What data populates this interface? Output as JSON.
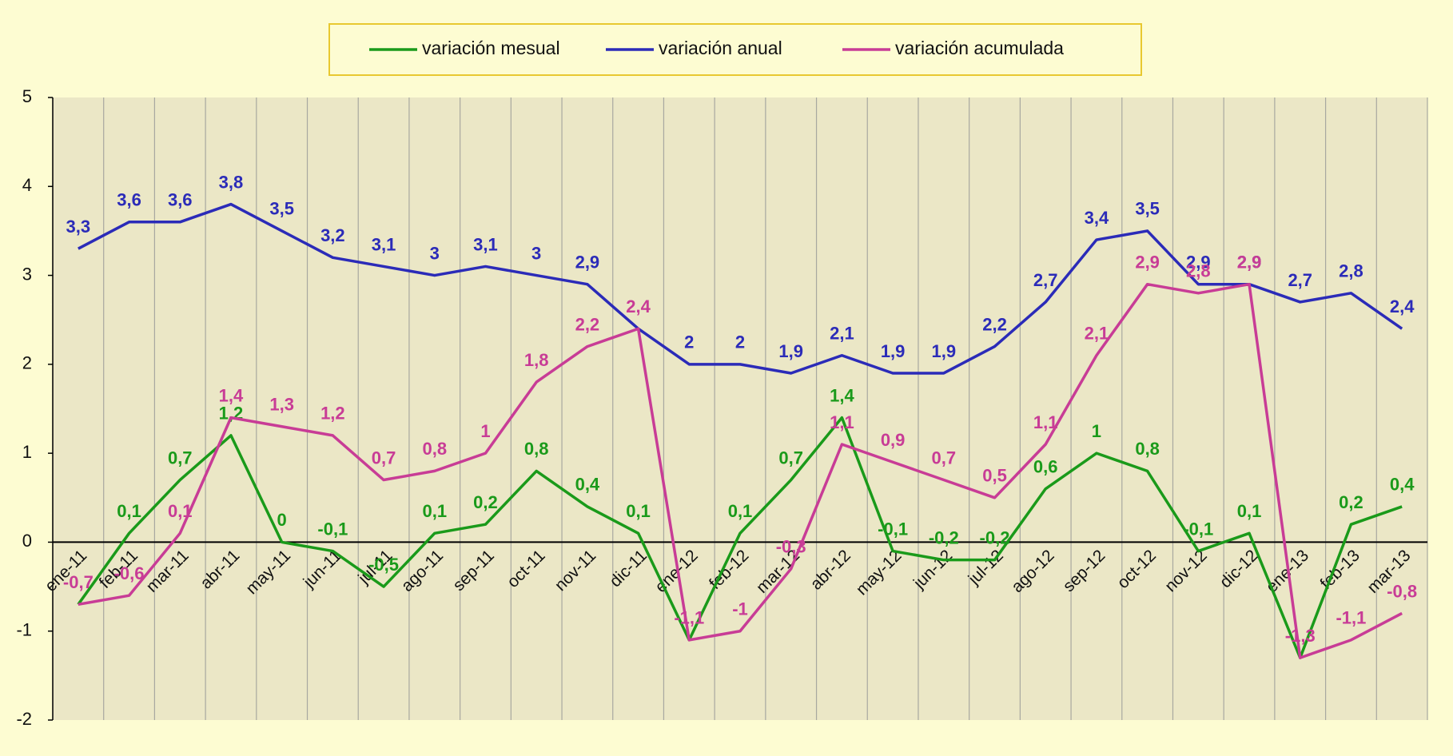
{
  "chart_data": {
    "type": "line",
    "categories": [
      "ene-11",
      "feb-11",
      "mar-11",
      "abr-11",
      "may-11",
      "jun-11",
      "jul-11",
      "ago-11",
      "sep-11",
      "oct-11",
      "nov-11",
      "dic-11",
      "ene-12",
      "feb-12",
      "mar-12",
      "abr-12",
      "may-12",
      "jun-12",
      "jul-12",
      "ago-12",
      "sep-12",
      "oct-12",
      "nov-12",
      "dic-12",
      "ene-13",
      "feb-13",
      "mar-13"
    ],
    "series": [
      {
        "name": "variación mesual",
        "color": "#1a9a1a",
        "values": [
          -0.7,
          0.1,
          0.7,
          1.2,
          0,
          -0.1,
          -0.5,
          0.1,
          0.2,
          0.8,
          0.4,
          0.1,
          -1.1,
          0.1,
          0.7,
          1.4,
          -0.1,
          -0.2,
          -0.2,
          0.6,
          1,
          0.8,
          -0.1,
          0.1,
          -1.3,
          0.2,
          0.4
        ],
        "value_labels": [
          null,
          "0,1",
          "0,7",
          "1,2",
          "0",
          "-0,1",
          "-0,5",
          "0,1",
          "0,2",
          "0,8",
          "0,4",
          "0,1",
          null,
          "0,1",
          "0,7",
          "1,4",
          "-0,1",
          "-0,2",
          "-0,2",
          "0,6",
          "1",
          "0,8",
          "-0,1",
          "0,1",
          null,
          "0,2",
          "0,4"
        ]
      },
      {
        "name": "variación anual",
        "color": "#2b2bb8",
        "values": [
          3.3,
          3.6,
          3.6,
          3.8,
          3.5,
          3.2,
          3.1,
          3,
          3.1,
          3,
          2.9,
          2.4,
          2,
          2,
          1.9,
          2.1,
          1.9,
          1.9,
          2.2,
          2.7,
          3.4,
          3.5,
          2.9,
          2.9,
          2.7,
          2.8,
          2.4
        ],
        "value_labels": [
          "3,3",
          "3,6",
          "3,6",
          "3,8",
          "3,5",
          "3,2",
          "3,1",
          "3",
          "3,1",
          "3",
          "2,9",
          null,
          "2",
          "2",
          "1,9",
          "2,1",
          "1,9",
          "1,9",
          "2,2",
          "2,7",
          "3,4",
          "3,5",
          "2,9",
          "2,9",
          "2,7",
          "2,8",
          "2,4"
        ]
      },
      {
        "name": "variación acumulada",
        "color": "#c83c96",
        "values": [
          -0.7,
          -0.6,
          0.1,
          1.4,
          1.3,
          1.2,
          0.7,
          0.8,
          1,
          1.8,
          2.2,
          2.4,
          -1.1,
          -1,
          -0.3,
          1.1,
          0.9,
          0.7,
          0.5,
          1.1,
          2.1,
          2.9,
          2.8,
          2.9,
          -1.3,
          -1.1,
          -0.8
        ],
        "value_labels": [
          "-0,7",
          "-0,6",
          "0,1",
          "1,4",
          "1,3",
          "1,2",
          "0,7",
          "0,8",
          "1",
          "1,8",
          "2,2",
          "2,4",
          "-1,1",
          "-1",
          "-0,3",
          "1,1",
          "0,9",
          "0,7",
          "0,5",
          "1,1",
          "2,1",
          "2,9",
          "2,8",
          "2,9",
          "-1,3",
          "-1,1",
          "-0,8"
        ]
      }
    ],
    "ylim": [
      -2,
      5
    ],
    "yticks": [
      -2,
      -1,
      0,
      1,
      2,
      3,
      4,
      5
    ],
    "grid": "vertical",
    "legend": "top"
  }
}
